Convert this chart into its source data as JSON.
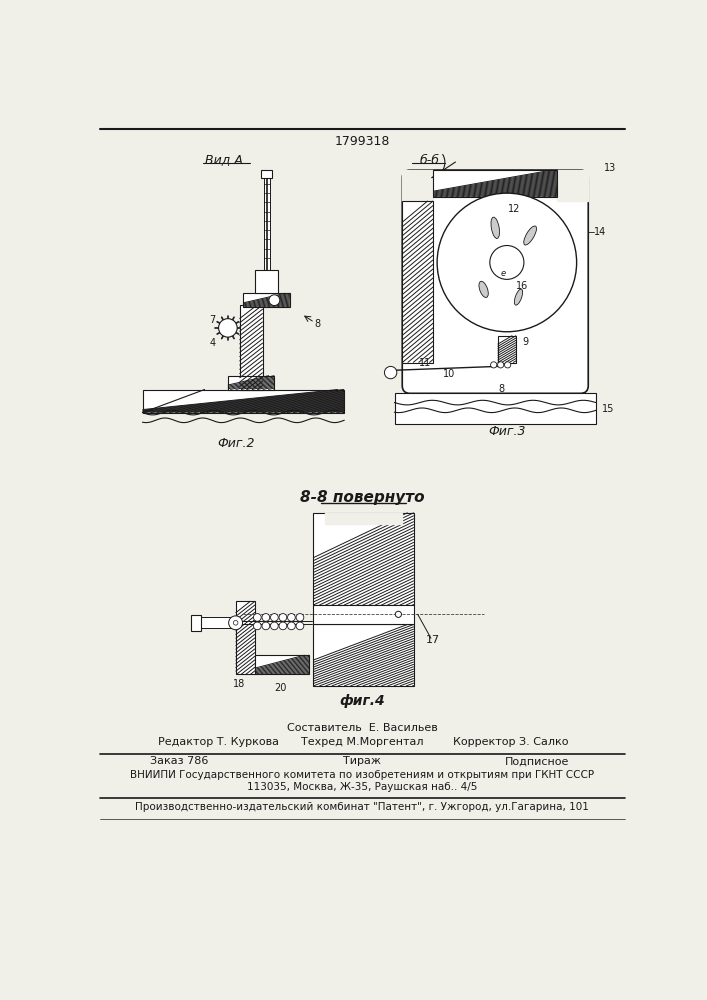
{
  "patent_number": "1799318",
  "background_color": "#f0efe8",
  "fig2_label": "Фиг.2",
  "fig3_label": "Фиг.3",
  "fig4_label": "фиг.4",
  "view_a_label": "Вид A",
  "view_bb_label": "б-б",
  "section_label": "8-8 повернуто",
  "footer_sestavitel": "Составитель  Е. Васильев",
  "footer_tehred": "Техред М.Моргентал",
  "footer_redaktor": "Редактор Т. Куркова",
  "footer_korrektor": "Корректор З. Салко",
  "footer_zakaz": "Заказ 786",
  "footer_tirazh": "Тираж",
  "footer_podpisnoe": "Подписное",
  "footer_vnipi": "ВНИИПИ Государственного комитета по изобретениям и открытиям при ГКНТ СССР",
  "footer_addr": "113035, Москва, Ж-35, Раушская наб.. 4/5",
  "footer_patent": "Производственно-издательский комбинат \"Патент\", г. Ужгород, ул.Гагарина, 101",
  "lc": "#1a1a1a",
  "hc": "#555555"
}
